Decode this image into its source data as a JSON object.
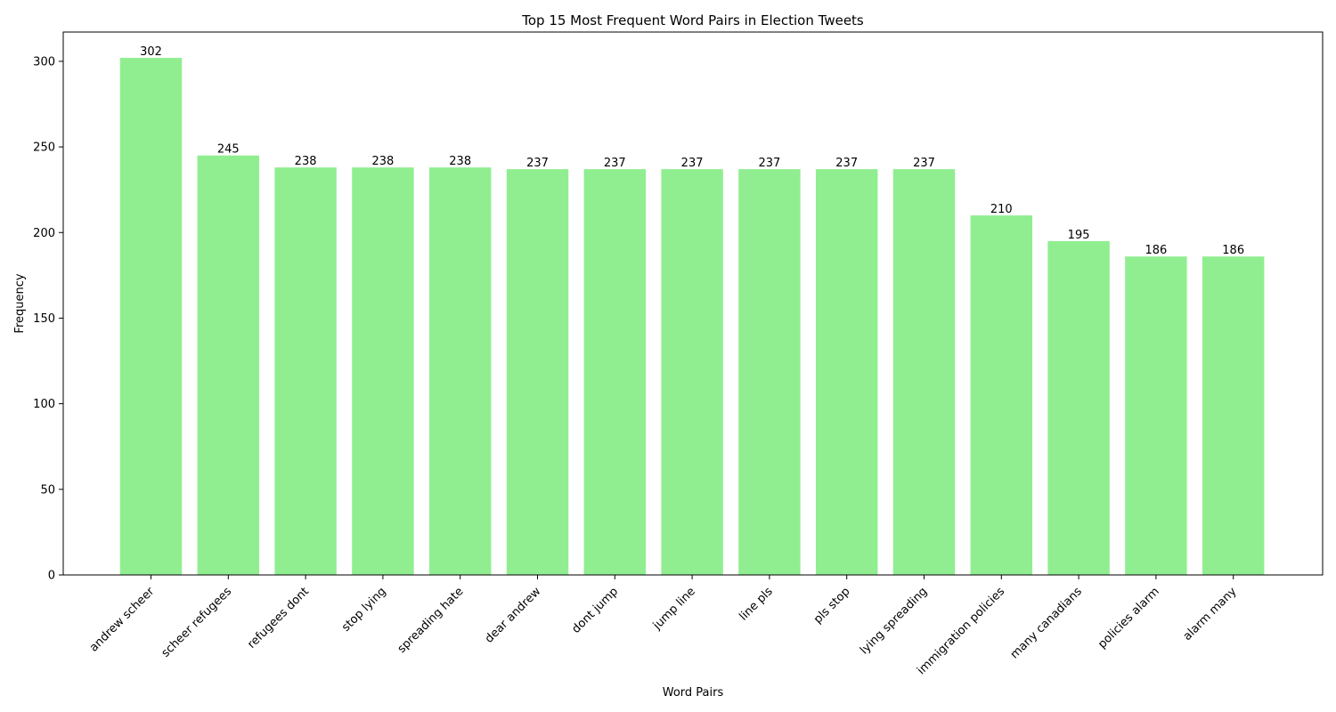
{
  "chart_data": {
    "type": "bar",
    "title": "Top 15 Most Frequent Word Pairs in Election Tweets",
    "xlabel": "Word Pairs",
    "ylabel": "Frequency",
    "categories": [
      "andrew scheer",
      "scheer refugees",
      "refugees dont",
      "stop lying",
      "spreading hate",
      "dear andrew",
      "dont jump",
      "jump line",
      "line pls",
      "pls stop",
      "lying spreading",
      "immigration policies",
      "many canadians",
      "policies alarm",
      "alarm many"
    ],
    "values": [
      302,
      245,
      238,
      238,
      238,
      237,
      237,
      237,
      237,
      237,
      237,
      210,
      195,
      186,
      186
    ],
    "ylim": [
      0,
      317.1
    ],
    "yticks": [
      0,
      50,
      100,
      150,
      200,
      250,
      300
    ],
    "grid": false,
    "show_data_labels": true,
    "colors": {
      "bar": "#90ee90",
      "axis": "#000000",
      "text": "#000000",
      "background": "#ffffff"
    }
  }
}
